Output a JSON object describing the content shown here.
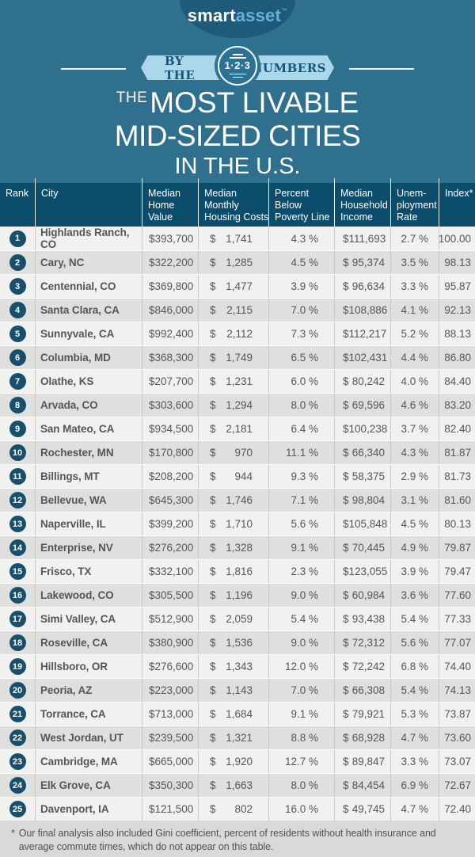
{
  "colors": {
    "background_teal": "#2f708f",
    "logo_oval_navy": "#1e5a7b",
    "logo_asset_blue": "#66b2d9",
    "ribbon_light_blue": "#aad7ea",
    "ribbon_text_blue": "#17567c",
    "badge_circle_blue": "#2b7396",
    "table_header_navy": "#0c4d6e",
    "rank_badge_navy": "#174f6e",
    "row_light": "#f1f1ef",
    "row_dark": "#dfdfdd",
    "footer_gray": "#d9d9d7",
    "body_text_gray": "#55565a"
  },
  "logo": {
    "part1": "smart",
    "part2": "asset",
    "trademark": "™"
  },
  "badge": {
    "left": "BY THE",
    "center": "1·2·3",
    "right": "NUMBERS"
  },
  "title": {
    "prefix": "THE",
    "line1": "MOST LIVABLE",
    "line2": "MID-SIZED CITIES",
    "line3": "IN THE U.S."
  },
  "table": {
    "currency_symbol": "$",
    "header_lines": [
      [
        "Rank"
      ],
      [
        "City"
      ],
      [
        "Median",
        "Home",
        "Value"
      ],
      [
        "Median",
        "Monthly",
        "Housing Costs"
      ],
      [
        "Percent",
        "Below",
        "Poverty Line"
      ],
      [
        "Median",
        "Household",
        "Income"
      ],
      [
        "Unem-",
        "ployment",
        "Rate"
      ],
      [
        "Index*"
      ]
    ],
    "header_slugs": [
      "rank",
      "city",
      "median-home-value",
      "median-monthly-housing-costs",
      "percent-below-poverty-line",
      "median-household-income",
      "unemployment-rate",
      "index"
    ]
  },
  "chart_data": {
    "type": "table",
    "title": "The Most Livable Mid-Sized Cities in the U.S.",
    "columns": [
      "Rank",
      "City",
      "Median Home Value",
      "Median Monthly Housing Costs",
      "Percent Below Poverty Line",
      "Median Household Income",
      "Unemployment Rate",
      "Index*"
    ],
    "rows": [
      {
        "rank": 1,
        "city": "Highlands Ranch, CO",
        "median_home_value": 393700,
        "median_monthly_housing_costs": 1741,
        "percent_below_poverty_line": 4.3,
        "median_household_income": 111693,
        "unemployment_rate": 2.7,
        "index": 100.0
      },
      {
        "rank": 2,
        "city": "Cary, NC",
        "median_home_value": 322200,
        "median_monthly_housing_costs": 1285,
        "percent_below_poverty_line": 4.5,
        "median_household_income": 95374,
        "unemployment_rate": 3.5,
        "index": 98.13
      },
      {
        "rank": 3,
        "city": "Centennial, CO",
        "median_home_value": 369800,
        "median_monthly_housing_costs": 1477,
        "percent_below_poverty_line": 3.9,
        "median_household_income": 96634,
        "unemployment_rate": 3.3,
        "index": 95.87
      },
      {
        "rank": 4,
        "city": "Santa Clara, CA",
        "median_home_value": 846000,
        "median_monthly_housing_costs": 2115,
        "percent_below_poverty_line": 7.0,
        "median_household_income": 108886,
        "unemployment_rate": 4.1,
        "index": 92.13
      },
      {
        "rank": 5,
        "city": "Sunnyvale, CA",
        "median_home_value": 992400,
        "median_monthly_housing_costs": 2112,
        "percent_below_poverty_line": 7.3,
        "median_household_income": 112217,
        "unemployment_rate": 5.2,
        "index": 88.13
      },
      {
        "rank": 6,
        "city": "Columbia, MD",
        "median_home_value": 368300,
        "median_monthly_housing_costs": 1749,
        "percent_below_poverty_line": 6.5,
        "median_household_income": 102431,
        "unemployment_rate": 4.4,
        "index": 86.8
      },
      {
        "rank": 7,
        "city": "Olathe, KS",
        "median_home_value": 207700,
        "median_monthly_housing_costs": 1231,
        "percent_below_poverty_line": 6.0,
        "median_household_income": 80242,
        "unemployment_rate": 4.0,
        "index": 84.4
      },
      {
        "rank": 8,
        "city": "Arvada, CO",
        "median_home_value": 303600,
        "median_monthly_housing_costs": 1294,
        "percent_below_poverty_line": 8.0,
        "median_household_income": 69596,
        "unemployment_rate": 4.6,
        "index": 83.2
      },
      {
        "rank": 9,
        "city": "San Mateo, CA",
        "median_home_value": 934500,
        "median_monthly_housing_costs": 2181,
        "percent_below_poverty_line": 6.4,
        "median_household_income": 100238,
        "unemployment_rate": 3.7,
        "index": 82.4
      },
      {
        "rank": 10,
        "city": "Rochester, MN",
        "median_home_value": 170800,
        "median_monthly_housing_costs": 970,
        "percent_below_poverty_line": 11.1,
        "median_household_income": 66340,
        "unemployment_rate": 4.3,
        "index": 81.87
      },
      {
        "rank": 11,
        "city": "Billings, MT",
        "median_home_value": 208200,
        "median_monthly_housing_costs": 944,
        "percent_below_poverty_line": 9.3,
        "median_household_income": 58375,
        "unemployment_rate": 2.9,
        "index": 81.73
      },
      {
        "rank": 12,
        "city": "Bellevue, WA",
        "median_home_value": 645300,
        "median_monthly_housing_costs": 1746,
        "percent_below_poverty_line": 7.1,
        "median_household_income": 98804,
        "unemployment_rate": 3.1,
        "index": 81.6
      },
      {
        "rank": 13,
        "city": "Naperville, IL",
        "median_home_value": 399200,
        "median_monthly_housing_costs": 1710,
        "percent_below_poverty_line": 5.6,
        "median_household_income": 105848,
        "unemployment_rate": 4.5,
        "index": 80.13
      },
      {
        "rank": 14,
        "city": "Enterprise, NV",
        "median_home_value": 276200,
        "median_monthly_housing_costs": 1328,
        "percent_below_poverty_line": 9.1,
        "median_household_income": 70445,
        "unemployment_rate": 4.9,
        "index": 79.87
      },
      {
        "rank": 15,
        "city": "Frisco, TX",
        "median_home_value": 332100,
        "median_monthly_housing_costs": 1816,
        "percent_below_poverty_line": 2.3,
        "median_household_income": 123055,
        "unemployment_rate": 3.9,
        "index": 79.47
      },
      {
        "rank": 16,
        "city": "Lakewood, CO",
        "median_home_value": 305500,
        "median_monthly_housing_costs": 1196,
        "percent_below_poverty_line": 9.0,
        "median_household_income": 60984,
        "unemployment_rate": 3.6,
        "index": 77.6
      },
      {
        "rank": 17,
        "city": "Simi Valley, CA",
        "median_home_value": 512900,
        "median_monthly_housing_costs": 2059,
        "percent_below_poverty_line": 5.4,
        "median_household_income": 93438,
        "unemployment_rate": 5.4,
        "index": 77.33
      },
      {
        "rank": 18,
        "city": "Roseville, CA",
        "median_home_value": 380900,
        "median_monthly_housing_costs": 1536,
        "percent_below_poverty_line": 9.0,
        "median_household_income": 72312,
        "unemployment_rate": 5.6,
        "index": 77.07
      },
      {
        "rank": 19,
        "city": "Hillsboro, OR",
        "median_home_value": 276600,
        "median_monthly_housing_costs": 1343,
        "percent_below_poverty_line": 12.0,
        "median_household_income": 72242,
        "unemployment_rate": 6.8,
        "index": 74.4
      },
      {
        "rank": 20,
        "city": "Peoria, AZ",
        "median_home_value": 223000,
        "median_monthly_housing_costs": 1143,
        "percent_below_poverty_line": 7.0,
        "median_household_income": 66308,
        "unemployment_rate": 5.4,
        "index": 74.13
      },
      {
        "rank": 21,
        "city": "Torrance, CA",
        "median_home_value": 713000,
        "median_monthly_housing_costs": 1684,
        "percent_below_poverty_line": 9.1,
        "median_household_income": 79921,
        "unemployment_rate": 5.3,
        "index": 73.87
      },
      {
        "rank": 22,
        "city": "West Jordan, UT",
        "median_home_value": 239500,
        "median_monthly_housing_costs": 1321,
        "percent_below_poverty_line": 8.8,
        "median_household_income": 68928,
        "unemployment_rate": 4.7,
        "index": 73.6
      },
      {
        "rank": 23,
        "city": "Cambridge, MA",
        "median_home_value": 665000,
        "median_monthly_housing_costs": 1920,
        "percent_below_poverty_line": 12.7,
        "median_household_income": 89847,
        "unemployment_rate": 3.3,
        "index": 73.07
      },
      {
        "rank": 24,
        "city": "Elk Grove, CA",
        "median_home_value": 350300,
        "median_monthly_housing_costs": 1663,
        "percent_below_poverty_line": 8.0,
        "median_household_income": 84454,
        "unemployment_rate": 6.9,
        "index": 72.67
      },
      {
        "rank": 25,
        "city": "Davenport, IA",
        "median_home_value": 121500,
        "median_monthly_housing_costs": 802,
        "percent_below_poverty_line": 16.0,
        "median_household_income": 49745,
        "unemployment_rate": 4.7,
        "index": 72.4
      }
    ]
  },
  "footnote": {
    "marker": "*",
    "text": "Our final analysis also included Gini coefficient, percent of residents without health insurance and average commute times, which do not appear on this table."
  }
}
